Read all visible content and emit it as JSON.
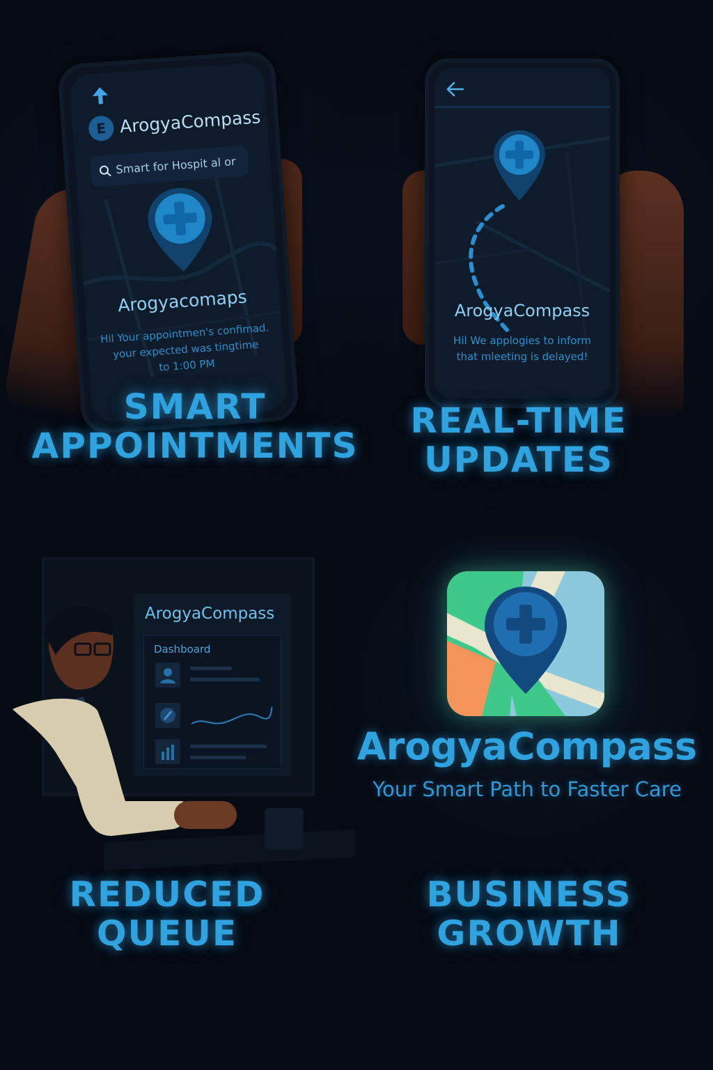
{
  "panels": {
    "smart_appointments": {
      "app_name": "ArogyaCompass",
      "search_placeholder": "Smart for Hospit al or",
      "screen_title": "Arogyacomaps",
      "message_line1": "Hil Your appointmen's confimad.",
      "message_line2": "your expected was tingtime",
      "message_line3": "to 1:00 PM",
      "headline_line1": "SMART",
      "headline_line2": "APPOINTMENTS"
    },
    "real_time_updates": {
      "screen_title": "ArogyaCompass",
      "message_line1": "Hil We applogies to inform",
      "message_line2": "that mleeting is delayed!",
      "headline_line1": "REAL-TIME",
      "headline_line2": "UPDATES"
    },
    "reduced_queue": {
      "dashboard_brand": "ArogyaCompass",
      "dashboard_label": "Dashboard",
      "headline_line1": "REDUCED",
      "headline_line2": "QUEUE"
    },
    "business_growth": {
      "brand_name": "ArogyaCompass",
      "tagline": "Your Smart Path to Faster Care",
      "headline_line1": "BUSINESS",
      "headline_line2": "GROWTH"
    }
  },
  "icons": {
    "phone1_top": "upload-arrow-icon",
    "phone1_logo": "compass-logo-icon",
    "search": "search-icon",
    "back": "back-arrow-icon",
    "pin": "medical-pin-icon"
  },
  "colors": {
    "background": "#060a13",
    "accent": "#2fa3e0",
    "pin": "#1f86c8"
  }
}
